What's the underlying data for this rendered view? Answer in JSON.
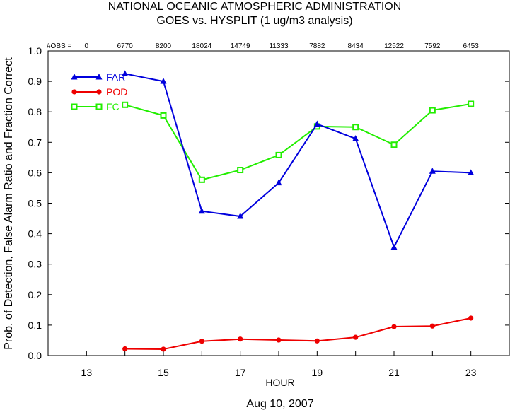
{
  "chart_data": {
    "type": "line",
    "title": "NATIONAL OCEANIC ATMOSPHERIC ADMINISTRATION",
    "subtitle": "GOES vs. HYSPLIT  (1 ug/m3 analysis)",
    "xlabel": "HOUR",
    "ylabel": "Prob. of Detection, False Alarm Ratio and Fraction Correct",
    "footer": "Aug 10, 2007",
    "xlim": [
      12,
      24
    ],
    "ylim": [
      0,
      1.0
    ],
    "x_ticks": [
      13,
      15,
      17,
      19,
      21,
      23
    ],
    "y_ticks": [
      0.0,
      0.1,
      0.2,
      0.3,
      0.4,
      0.5,
      0.6,
      0.7,
      0.8,
      0.9,
      1.0
    ],
    "y_tick_labels": [
      "0.0",
      "0.1",
      "0.2",
      "0.3",
      "0.4",
      "0.5",
      "0.6",
      "0.7",
      "0.8",
      "0.9",
      "1.0"
    ],
    "obs_label": "#OBS =",
    "obs": [
      {
        "x": 13,
        "label": "0"
      },
      {
        "x": 14,
        "label": "6770"
      },
      {
        "x": 15,
        "label": "8200"
      },
      {
        "x": 16,
        "label": "18024"
      },
      {
        "x": 17,
        "label": "14749"
      },
      {
        "x": 18,
        "label": "11333"
      },
      {
        "x": 19,
        "label": "7882"
      },
      {
        "x": 20,
        "label": "8434"
      },
      {
        "x": 21,
        "label": "12522"
      },
      {
        "x": 22,
        "label": "7592"
      },
      {
        "x": 23,
        "label": "6453"
      }
    ],
    "x": [
      14,
      15,
      16,
      17,
      18,
      19,
      20,
      21,
      22,
      23
    ],
    "series": [
      {
        "name": "FAR",
        "color": "#0000dd",
        "marker": "triangle",
        "values": [
          0.925,
          0.9,
          0.474,
          0.457,
          0.567,
          0.76,
          0.712,
          0.356,
          0.605,
          0.6
        ]
      },
      {
        "name": "POD",
        "color": "#ee0000",
        "marker": "circle",
        "values": [
          0.022,
          0.021,
          0.047,
          0.054,
          0.051,
          0.048,
          0.06,
          0.095,
          0.097,
          0.123
        ]
      },
      {
        "name": "FC",
        "color": "#22ee00",
        "marker": "square",
        "values": [
          0.823,
          0.788,
          0.577,
          0.609,
          0.658,
          0.752,
          0.75,
          0.692,
          0.805,
          0.826
        ]
      }
    ],
    "legend_position": "top-left",
    "grid": false
  }
}
